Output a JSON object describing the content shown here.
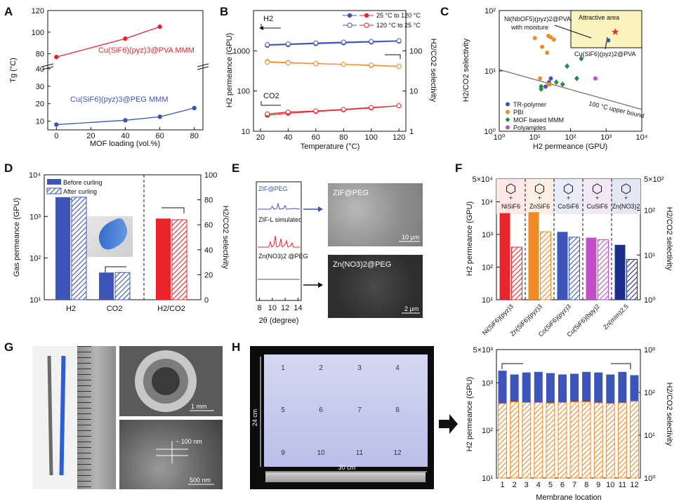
{
  "panel_letters": [
    "A",
    "B",
    "C",
    "D",
    "E",
    "F",
    "G",
    "H"
  ],
  "colors": {
    "blue": "#3d55b8",
    "red": "#e8252b",
    "orange": "#f08a24",
    "green": "#2a8a48",
    "purple": "#c24fc9",
    "navy": "#1d2f8a",
    "gray": "#666666"
  },
  "chart_data": [
    {
      "panel": "A",
      "type": "line",
      "xlabel": "MOF loading (vol.%)",
      "ylabel": "Tg (°C)",
      "xlim": [
        -5,
        85
      ],
      "xticks": [
        0,
        20,
        40,
        60,
        80
      ],
      "yticks_upper": [
        80,
        100,
        120
      ],
      "yticks_lower": [
        10,
        20,
        30,
        40
      ],
      "axis_break": true,
      "series": [
        {
          "name": "Cu(SiF6)(pyz)3@PVA MMM",
          "color": "#e8252b",
          "x": [
            0,
            40,
            60
          ],
          "y": [
            77,
            94,
            105
          ]
        },
        {
          "name": "Cu(SiF6)(pyz)3@PEG MMM",
          "color": "#3d55b8",
          "x": [
            0,
            40,
            60,
            80
          ],
          "y": [
            8,
            10.5,
            12.5,
            17.5
          ]
        }
      ]
    },
    {
      "panel": "B",
      "type": "line",
      "xlabel": "Temperature (°C)",
      "ylabel": "H2 permeance (GPU)",
      "y2label": "H2/CO2 selectivity",
      "xlim": [
        15,
        125
      ],
      "xticks": [
        20,
        40,
        60,
        80,
        100,
        120
      ],
      "ylim": [
        10,
        10000
      ],
      "y_log": true,
      "y2lim": [
        1,
        1000
      ],
      "y2_log": true,
      "legend": [
        "25 °C to 120 °C",
        "120 °C to 25 °C"
      ],
      "annotations": [
        "H2",
        "CO2"
      ],
      "series": [
        {
          "name": "H2 25→120",
          "axis": "y",
          "color": "#3d55b8",
          "filled": true,
          "x": [
            25,
            40,
            60,
            80,
            100,
            120
          ],
          "y": [
            1370,
            1420,
            1500,
            1570,
            1640,
            1730
          ]
        },
        {
          "name": "H2 120→25",
          "axis": "y",
          "color": "#3d55b8",
          "filled": false,
          "x": [
            25,
            40,
            60,
            80,
            100,
            120
          ],
          "y": [
            1420,
            1480,
            1560,
            1640,
            1710,
            1780
          ]
        },
        {
          "name": "CO2 25→120",
          "axis": "y",
          "color": "#e8252b",
          "filled": true,
          "x": [
            25,
            40,
            60,
            80,
            100,
            120
          ],
          "y": [
            25,
            28,
            31,
            34,
            38,
            43
          ]
        },
        {
          "name": "CO2 120→25",
          "axis": "y",
          "color": "#e8252b",
          "filled": false,
          "x": [
            25,
            40,
            60,
            80,
            100,
            120
          ],
          "y": [
            27,
            30,
            32,
            35,
            39,
            43
          ]
        },
        {
          "name": "Selectivity 25→120",
          "axis": "y2",
          "color": "#f08a24",
          "filled": true,
          "x": [
            25,
            40,
            60,
            80,
            100,
            120
          ],
          "y": [
            54,
            51,
            48,
            46,
            43,
            41
          ]
        },
        {
          "name": "Selectivity 120→25",
          "axis": "y2",
          "color": "#f08a24",
          "filled": false,
          "x": [
            25,
            40,
            60,
            80,
            100,
            120
          ],
          "y": [
            52,
            50,
            48,
            46,
            44,
            41
          ]
        }
      ]
    },
    {
      "panel": "C",
      "type": "scatter",
      "xlabel": "H2 permeance (GPU)",
      "ylabel": "H2/CO2 selectivity",
      "xlim": [
        1,
        10000
      ],
      "x_log": true,
      "ylim": [
        1,
        100
      ],
      "y_log": true,
      "attractive_label": "Attractive area",
      "upper_bound_label": "100 °C upper bound",
      "upper_bound_line": [
        [
          1,
          10.5
        ],
        [
          10000,
          2.3
        ]
      ],
      "callouts": [
        "Ni(NbOF5)(pyz)2@PVA",
        "with moisture",
        "Cu(SiF6)(pyz)2@PVA"
      ],
      "legend": [
        "TR-polymer",
        "PBI",
        "MOF based MMM",
        "Polyamides"
      ],
      "series": [
        {
          "name": "TR-polymer",
          "color": "#3d55b8",
          "marker": "circle",
          "x": [
            20,
            25,
            28
          ],
          "y": [
            5.5,
            6.5,
            7.5
          ]
        },
        {
          "name": "PBI",
          "color": "#f08a24",
          "marker": "circle",
          "x": [
            10,
            16,
            22,
            24,
            28,
            34,
            14,
            26,
            24
          ],
          "y": [
            35,
            25,
            20,
            38,
            36,
            33,
            7.5,
            6,
            6
          ]
        },
        {
          "name": "MOF based MMM",
          "color": "#2a8a48",
          "marker": "diamond",
          "x": [
            15,
            15,
            40,
            60,
            150,
            200,
            80
          ],
          "y": [
            5,
            5.5,
            6.5,
            6,
            7.5,
            16,
            12
          ]
        },
        {
          "name": "Polyamides",
          "color": "#c24fc9",
          "marker": "circle",
          "x": [
            500
          ],
          "y": [
            7.5
          ]
        },
        {
          "name": "Ni(NbOF5)(pyz)2@PVA",
          "color": "#3d55b8",
          "marker": "circle",
          "x": [
            1150
          ],
          "y": [
            32
          ]
        },
        {
          "name": "Cu(SiF6)(pyz)2@PVA",
          "color": "#e8252b",
          "marker": "star",
          "x": [
            1800
          ],
          "y": [
            45
          ]
        }
      ]
    },
    {
      "panel": "D",
      "type": "bar",
      "ylabel": "Gas permeance (GPU)",
      "y2label": "H2/CO2 selectivity",
      "ylim": [
        10,
        10000
      ],
      "y_log": true,
      "y2lim": [
        0,
        100
      ],
      "y2ticks": [
        0,
        20,
        40,
        60,
        80,
        100
      ],
      "categories": [
        "H2",
        "CO2",
        "H2/CO2"
      ],
      "legend": [
        "Before curling",
        "After curling"
      ],
      "series": [
        {
          "name": "Before curling",
          "values": [
            2900,
            45,
            65
          ]
        },
        {
          "name": "After curling",
          "values": [
            2900,
            45,
            64
          ]
        }
      ]
    },
    {
      "panel": "F",
      "type": "bar",
      "ylabel": "H2 permeance (GPU)",
      "y2label": "H2/CO2 selectivity",
      "ylim": [
        10,
        50000
      ],
      "y_log": true,
      "y2lim": [
        1,
        500
      ],
      "y2_log": true,
      "categories": [
        "Ni(SiF6)(pyz)3",
        "Zn(SiF6)(pyz)3",
        "Co(SiF6)(pyz)3",
        "Cu(SiF6)(bpy)2",
        "Zn(mIm)2.5"
      ],
      "header_labels": [
        "NiSiF6",
        "ZnSiF6",
        "CoSiF6",
        "CuSiF6",
        "Zn(NO3)2"
      ],
      "colors": [
        "#e8252b",
        "#f08a24",
        "#3d55b8",
        "#c24fc9",
        "#1d2f8a"
      ],
      "series": [
        {
          "name": "H2 permeance",
          "axis": "y",
          "values": [
            4500,
            4800,
            1200,
            800,
            480
          ]
        },
        {
          "name": "H2/CO2 selectivity",
          "axis": "y2",
          "values": [
            15,
            33,
            25,
            22,
            8
          ]
        }
      ]
    },
    {
      "panel": "E",
      "type": "line",
      "xlabel": "2θ (degree)",
      "xticks": [
        8,
        10,
        12,
        14
      ],
      "series_labels": [
        "ZIF@PEG",
        "ZIF-L simulated",
        "Zn(NO3)2 @PEG"
      ],
      "image_labels": [
        "ZIF@PEG",
        "Zn(NO3)2@PEG"
      ],
      "scale_bars": [
        "10 μm",
        "2 μm"
      ]
    },
    {
      "panel": "H",
      "type": "bar",
      "xlabel": "Membrane location",
      "ylabel": "H2 permeance (GPU)",
      "y2label": "H2/CO2 selectivity",
      "ylim": [
        10,
        5000
      ],
      "y_log": true,
      "y2lim": [
        1,
        1000
      ],
      "y2_log": true,
      "categories": [
        "1",
        "2",
        "3",
        "4",
        "5",
        "6",
        "7",
        "8",
        "9",
        "10",
        "11",
        "12"
      ],
      "series": [
        {
          "name": "H2 permeance",
          "axis": "y",
          "color": "#3d55b8",
          "values": [
            1800,
            1500,
            1650,
            1700,
            1600,
            1500,
            1550,
            1700,
            1650,
            1500,
            1700,
            1450
          ]
        },
        {
          "name": "H2/CO2 selectivity",
          "axis": "y2",
          "color": "#f08a24",
          "values": [
            55,
            60,
            58,
            58,
            56,
            58,
            60,
            60,
            57,
            55,
            57,
            62
          ]
        }
      ]
    }
  ],
  "photo_G": {
    "scale_bars": [
      "1 mm",
      "500 nm"
    ],
    "annotation": "~ 100 nm"
  },
  "photo_H": {
    "numbers": [
      "1",
      "2",
      "3",
      "4",
      "5",
      "6",
      "7",
      "8",
      "9",
      "10",
      "11",
      "12"
    ],
    "dim_v": "24 cm",
    "dim_h": "30 cm"
  }
}
